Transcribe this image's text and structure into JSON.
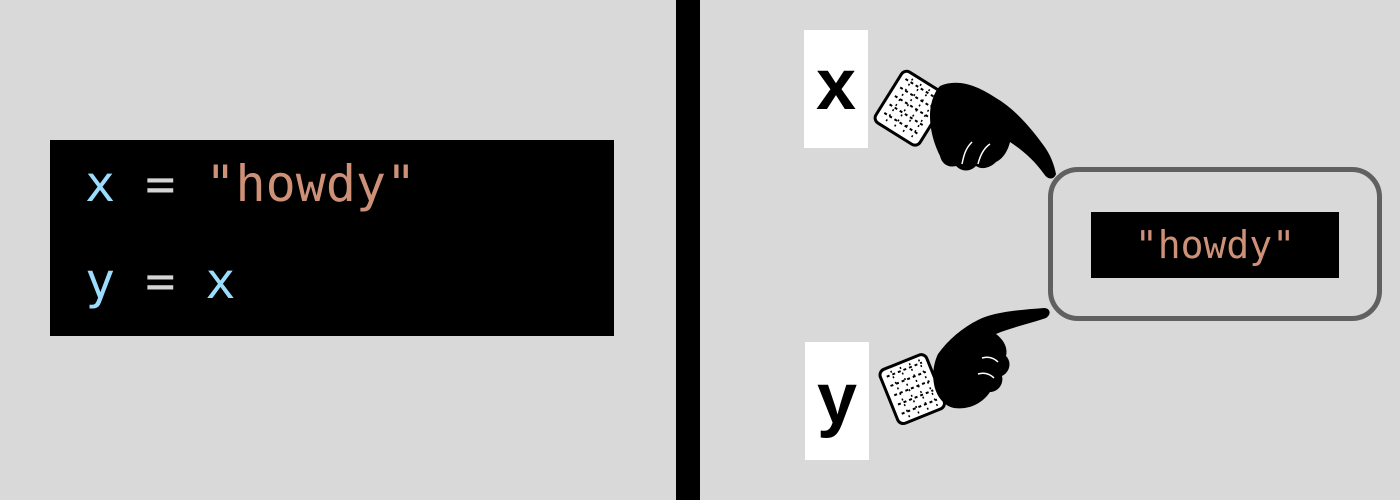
{
  "code": {
    "line1": {
      "var": "x",
      "op": " = ",
      "value": "\"howdy\""
    },
    "line2": {
      "var": "y",
      "op": " = ",
      "value": "x"
    }
  },
  "names": {
    "x": "x",
    "y": "y"
  },
  "object": {
    "value": "\"howdy\""
  },
  "colors": {
    "background": "#d9d9d9",
    "variable": "#9cdcfe",
    "string": "#ce9178",
    "frame": "#606060"
  }
}
